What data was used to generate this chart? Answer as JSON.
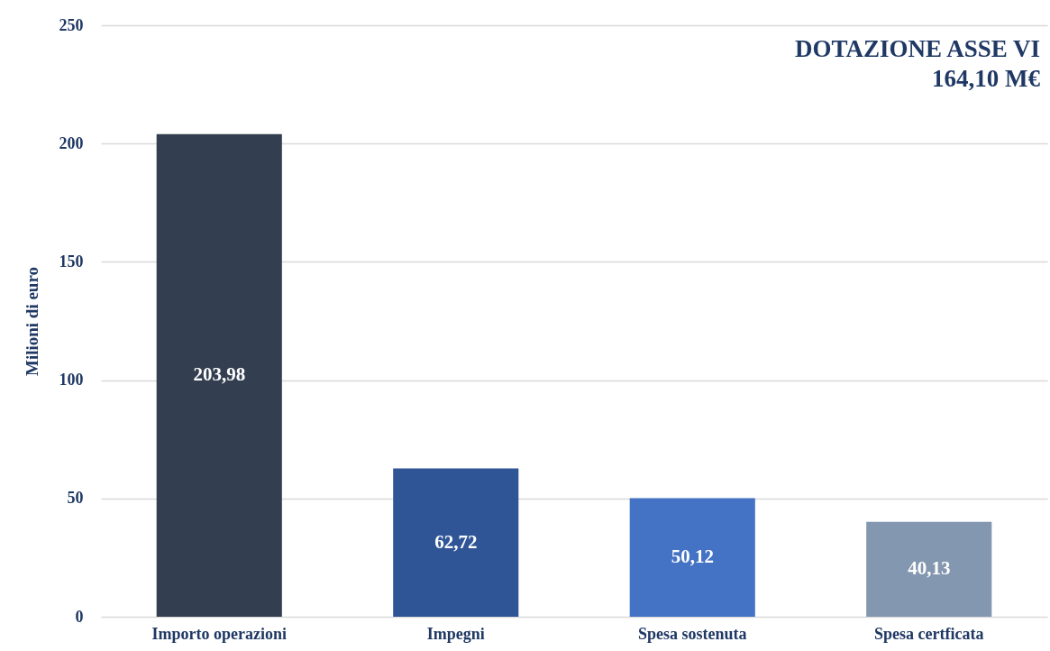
{
  "chart_data": {
    "type": "bar",
    "annotations": [
      "DOTAZIONE ASSE VI",
      "164,10 M€"
    ],
    "ylabel": "Milioni di euro",
    "categories": [
      "Importo operazioni",
      "Impegni",
      "Spesa sostenuta",
      "Spesa certficata"
    ],
    "values": [
      203.98,
      62.72,
      50.12,
      40.13
    ],
    "colors": [
      "#333f50",
      "#2f5597",
      "#4472c4",
      "#8497b0"
    ],
    "value_labels": [
      "203,98",
      "62,72",
      "50,12",
      "40,13"
    ],
    "ylim": [
      0,
      250
    ],
    "yticks": [
      0,
      50,
      100,
      150,
      200,
      250
    ],
    "grid": "y",
    "legend": false
  }
}
